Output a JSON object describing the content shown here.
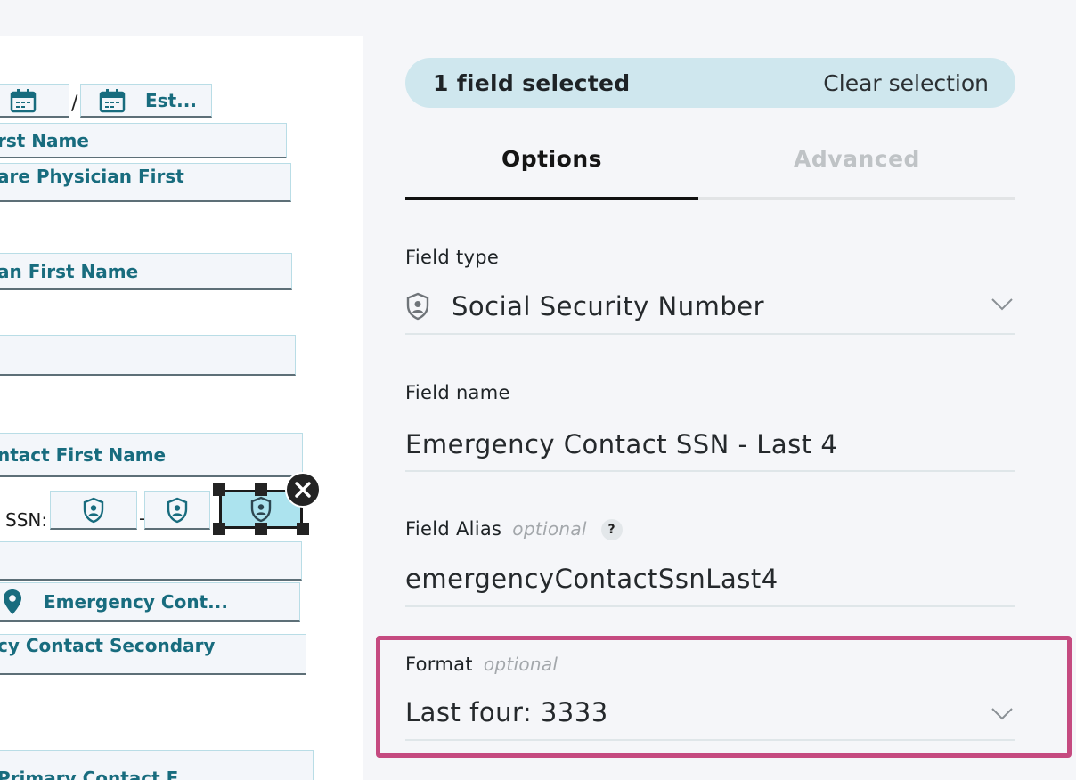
{
  "document": {
    "date_field_label": "Est...",
    "date_separator": "/",
    "fields": [
      {
        "label": "rst Name"
      },
      {
        "label": "are Physician First"
      },
      {
        "label": "an First Name"
      },
      {
        "label": ""
      },
      {
        "label": "ntact First Name"
      }
    ],
    "ssn_label": "SSN:",
    "ssn_separator": "-",
    "address_field_label": "Emergency Cont...",
    "secondary_field_label": "cy Contact Secondary",
    "primary_field_label": "Primary Contact F..."
  },
  "selection": {
    "count_text": "1 field selected",
    "clear_label": "Clear selection"
  },
  "tabs": [
    {
      "label": "Options",
      "active": true
    },
    {
      "label": "Advanced",
      "active": false
    }
  ],
  "form": {
    "field_type": {
      "label": "Field type",
      "value": "Social Security Number",
      "icon": "shield-person-icon"
    },
    "field_name": {
      "label": "Field name",
      "value": "Emergency Contact SSN - Last 4"
    },
    "field_alias": {
      "label": "Field Alias",
      "optional_text": "optional",
      "help_text": "?",
      "value": "emergencyContactSsnLast4"
    },
    "format": {
      "label": "Format",
      "optional_text": "optional",
      "value": "Last four: 3333"
    }
  },
  "colors": {
    "field_text": "#186c7e",
    "selection_bar": "#cfe7ee",
    "highlight": "#c54a80",
    "selected_field": "#ace3ee"
  }
}
